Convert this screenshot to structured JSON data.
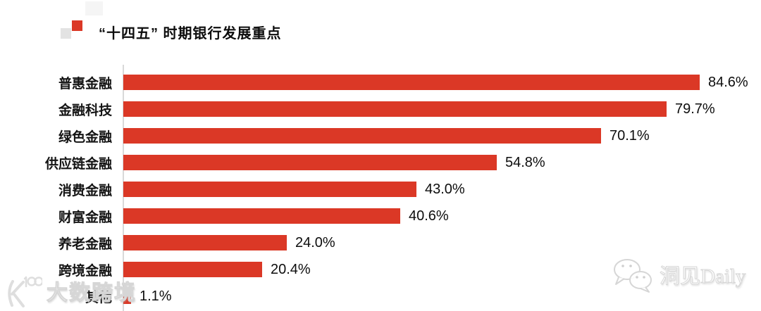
{
  "header": {
    "title": "“十四五” 时期银行发展重点"
  },
  "chart_data": {
    "type": "bar",
    "orientation": "horizontal",
    "title": "“十四五” 时期银行发展重点",
    "categories": [
      "普惠金融",
      "金融科技",
      "绿色金融",
      "供应链金融",
      "消费金融",
      "财富金融",
      "养老金融",
      "跨境金融",
      "其他"
    ],
    "values": [
      84.6,
      79.7,
      70.1,
      54.8,
      43.0,
      40.6,
      24.0,
      20.4,
      1.1
    ],
    "value_labels": [
      "84.6%",
      "79.7%",
      "70.1%",
      "54.8%",
      "43.0%",
      "40.6%",
      "24.0%",
      "20.4%",
      "1.1%"
    ],
    "xlabel": "",
    "ylabel": "",
    "xlim": [
      0,
      84.6
    ],
    "grid": false,
    "legend": false,
    "bar_color": "#db3826",
    "axis_line_color": "#d9d9d9",
    "label_color": "#141414"
  },
  "title_marker": {
    "red_square_color": "#db3826",
    "gray_square_color": "#e3e3e3"
  },
  "watermarks": {
    "bottom_left": {
      "icon": "k100-logo",
      "text": "大数跨境"
    },
    "bottom_right": {
      "icon": "wechat-bubbles",
      "text": "洞见Daily"
    }
  }
}
